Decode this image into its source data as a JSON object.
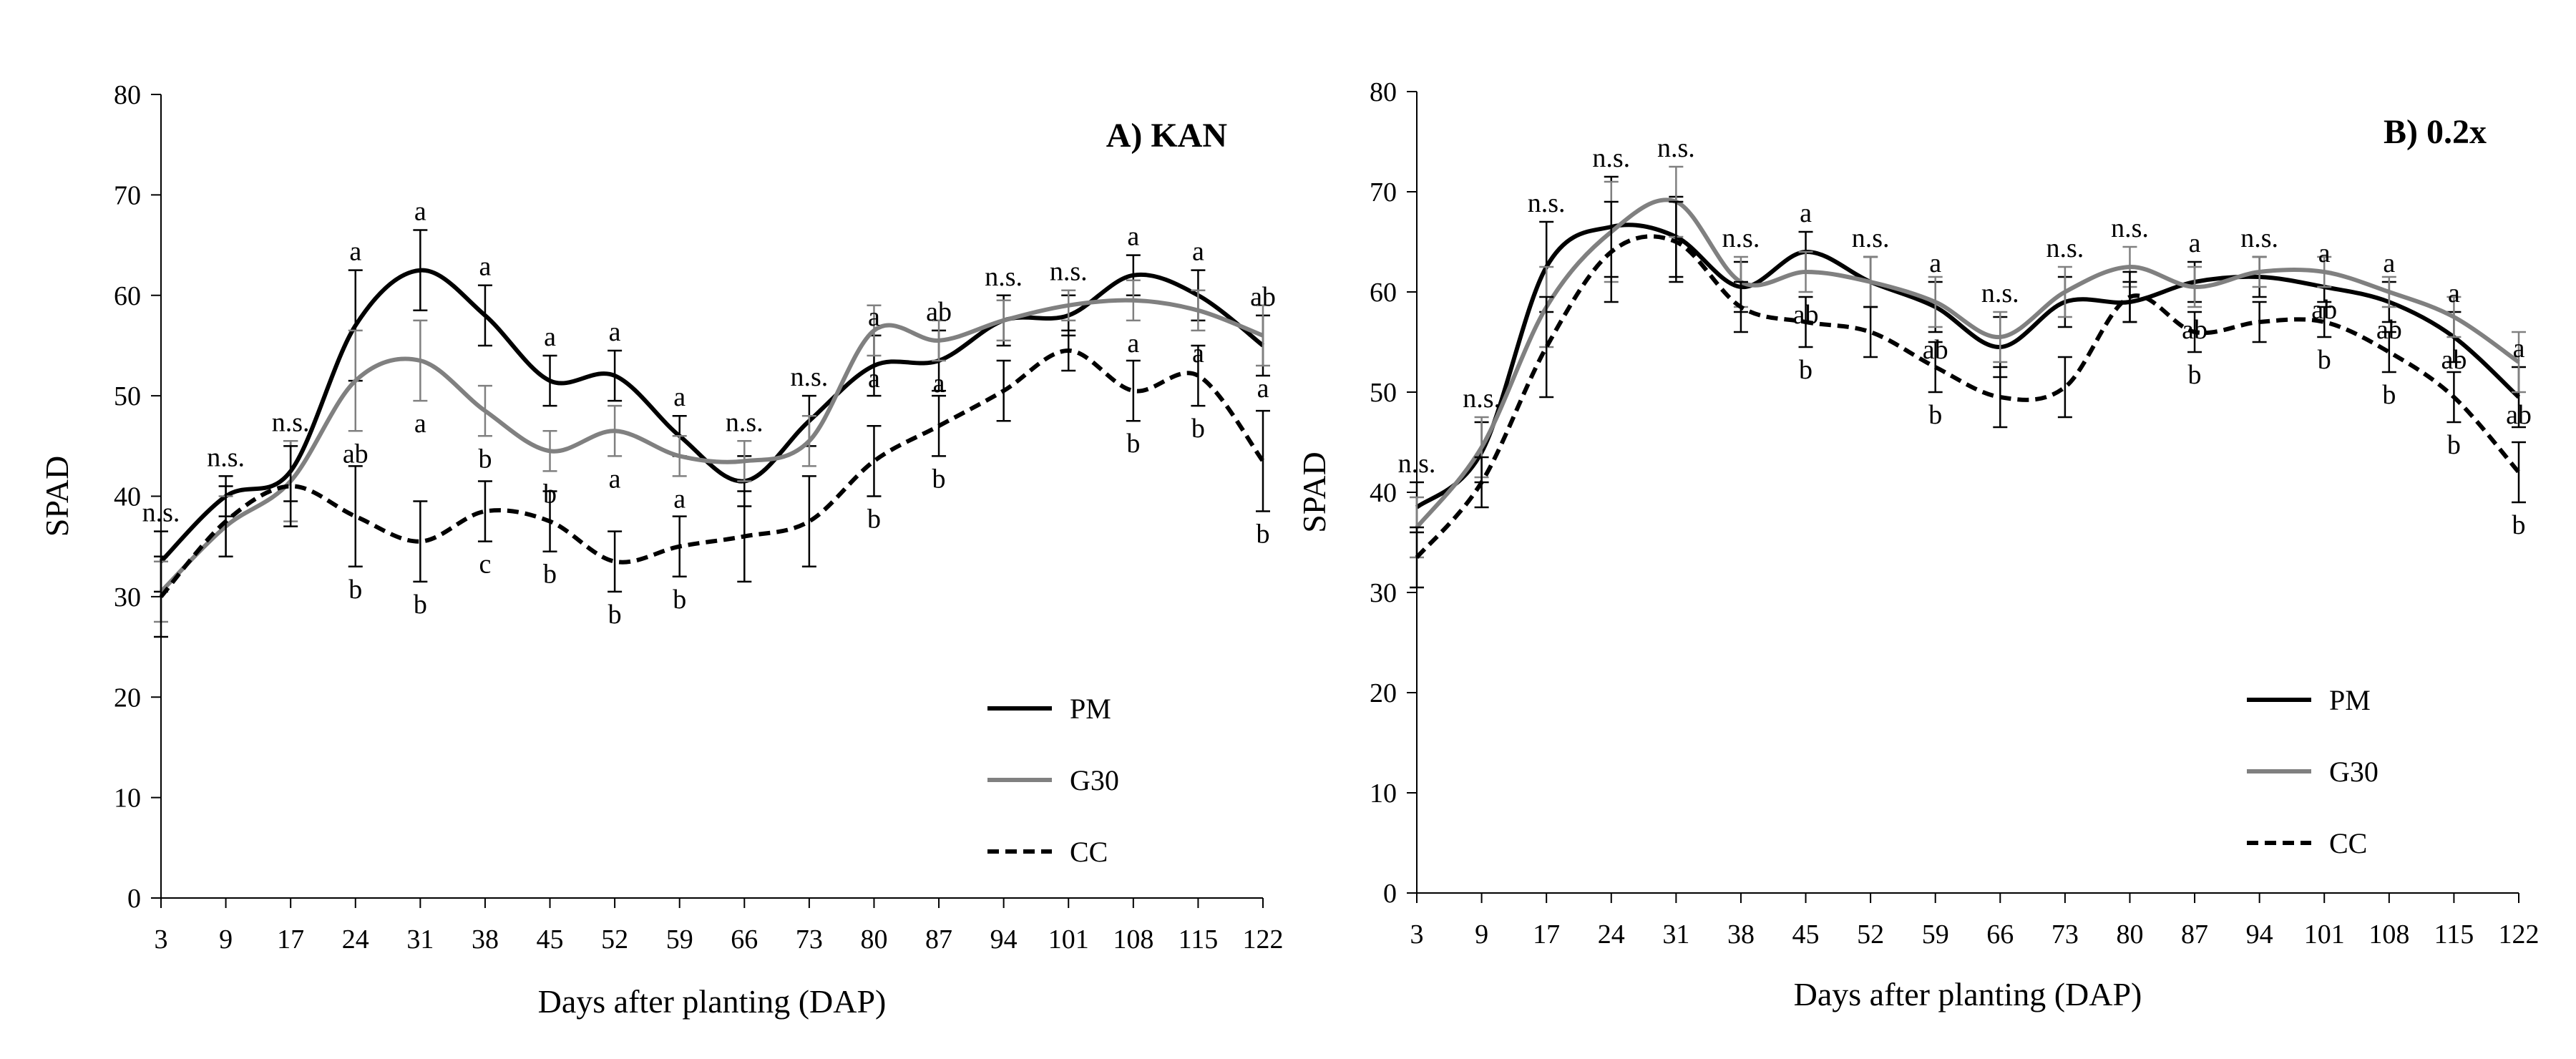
{
  "chart_data": [
    {
      "type": "line",
      "title": "A) KAN",
      "xlabel": "Days after planting (DAP)",
      "ylabel": "SPAD",
      "ylim": [
        0,
        80
      ],
      "yticks": [
        0,
        10,
        20,
        30,
        40,
        50,
        60,
        70,
        80
      ],
      "x": [
        3,
        9,
        17,
        24,
        31,
        38,
        45,
        52,
        59,
        66,
        73,
        80,
        87,
        94,
        101,
        108,
        115,
        122
      ],
      "legend_position": "bottom-right",
      "series": [
        {
          "name": "PM",
          "color": "#000000",
          "dash": "solid",
          "values": [
            33.5,
            40,
            42.5,
            57,
            62.5,
            58,
            51.5,
            52,
            46,
            41.5,
            47.5,
            53,
            53.5,
            57.5,
            58,
            62,
            60,
            55
          ],
          "err": [
            3,
            2,
            3,
            5.5,
            4,
            3,
            2.5,
            2.5,
            2,
            2.5,
            2.5,
            3,
            3,
            2.5,
            2,
            2,
            2.5,
            3
          ]
        },
        {
          "name": "G30",
          "color": "#808080",
          "dash": "solid",
          "values": [
            30.5,
            37,
            41.5,
            51.5,
            53.5,
            48.5,
            44.5,
            46.5,
            44,
            43.5,
            45.5,
            56.5,
            55.5,
            57.5,
            59,
            59.5,
            58.5,
            56
          ],
          "err": [
            3,
            3,
            4,
            5,
            4,
            2.5,
            2,
            2.5,
            2,
            2,
            2.5,
            2.5,
            2,
            2,
            1.5,
            2,
            2,
            3
          ]
        },
        {
          "name": "CC",
          "color": "#000000",
          "dash": "dashed",
          "values": [
            30,
            37.5,
            41,
            38,
            35.5,
            38.5,
            37.5,
            33.5,
            35,
            36,
            37.5,
            43.5,
            47,
            50.5,
            54.5,
            50.5,
            52,
            43.5
          ],
          "err": [
            4,
            3.5,
            4,
            5,
            4,
            3,
            3,
            3,
            3,
            4.5,
            4.5,
            3.5,
            3,
            3,
            2,
            3,
            3,
            5
          ]
        }
      ],
      "annotations": [
        {
          "x": 3,
          "lines": [
            "n.s."
          ]
        },
        {
          "x": 9,
          "lines": [
            "n.s."
          ]
        },
        {
          "x": 17,
          "lines": [
            "n.s."
          ]
        },
        {
          "x": 24,
          "lines": [
            "a",
            "ab",
            "b"
          ]
        },
        {
          "x": 31,
          "lines": [
            "a",
            "a",
            "b"
          ]
        },
        {
          "x": 38,
          "lines": [
            "a",
            "b",
            "c"
          ]
        },
        {
          "x": 45,
          "lines": [
            "a",
            "b",
            "b"
          ]
        },
        {
          "x": 52,
          "lines": [
            "a",
            "a",
            "b"
          ]
        },
        {
          "x": 59,
          "lines": [
            "a",
            "a",
            "b"
          ]
        },
        {
          "x": 66,
          "lines": [
            "n.s."
          ]
        },
        {
          "x": 73,
          "lines": [
            "n.s."
          ]
        },
        {
          "x": 80,
          "lines": [
            "a",
            "a",
            "b"
          ]
        },
        {
          "x": 87,
          "lines": [
            "ab",
            "a",
            "b"
          ]
        },
        {
          "x": 94,
          "lines": [
            "n.s."
          ]
        },
        {
          "x": 101,
          "lines": [
            "n.s."
          ]
        },
        {
          "x": 108,
          "lines": [
            "a",
            "a",
            "b"
          ]
        },
        {
          "x": 115,
          "lines": [
            "a",
            "a",
            "b"
          ]
        },
        {
          "x": 122,
          "lines": [
            "ab",
            "a",
            "b"
          ]
        }
      ]
    },
    {
      "type": "line",
      "title": "B) 0.2x",
      "xlabel": "Days after planting (DAP)",
      "ylabel": "SPAD",
      "ylim": [
        0,
        80
      ],
      "yticks": [
        0,
        10,
        20,
        30,
        40,
        50,
        60,
        70,
        80
      ],
      "x": [
        3,
        9,
        17,
        24,
        31,
        38,
        45,
        52,
        59,
        66,
        73,
        80,
        87,
        94,
        101,
        108,
        115,
        122
      ],
      "legend_position": "bottom-right",
      "series": [
        {
          "name": "PM",
          "color": "#000000",
          "dash": "solid",
          "values": [
            38.5,
            44,
            62.5,
            66.5,
            65.5,
            60.5,
            64,
            61,
            58.5,
            54.5,
            59,
            59,
            61,
            61.5,
            60.5,
            59,
            55.5,
            49.5
          ],
          "err": [
            2.5,
            3,
            4.5,
            5,
            4,
            2.5,
            2,
            2.5,
            2.5,
            3,
            2.5,
            2,
            2,
            2,
            1.5,
            2,
            2.5,
            3
          ]
        },
        {
          "name": "G30",
          "color": "#808080",
          "dash": "solid",
          "values": [
            36.5,
            44.5,
            58.5,
            66,
            69,
            61,
            62,
            61,
            59,
            55.5,
            60,
            62.5,
            60.5,
            62,
            62,
            60,
            57.5,
            53
          ],
          "err": [
            3,
            3,
            4,
            5,
            3.5,
            2.5,
            2,
            2.5,
            2.5,
            2.5,
            2.5,
            2,
            2,
            1.5,
            1.5,
            1.5,
            2,
            3
          ]
        },
        {
          "name": "CC",
          "color": "#000000",
          "dash": "dashed",
          "values": [
            33.5,
            41,
            54.5,
            64,
            65,
            58.5,
            57,
            56,
            52.5,
            49.5,
            50.5,
            59.5,
            56,
            57,
            57,
            54,
            49.5,
            42
          ],
          "err": [
            3,
            2.5,
            5,
            5,
            4,
            2.5,
            2.5,
            2.5,
            2.5,
            3,
            3,
            2.5,
            2,
            2,
            1.5,
            2,
            2.5,
            3
          ]
        }
      ],
      "annotations": [
        {
          "x": 3,
          "lines": [
            "n.s."
          ]
        },
        {
          "x": 9,
          "lines": [
            "n.s."
          ]
        },
        {
          "x": 17,
          "lines": [
            "n.s."
          ]
        },
        {
          "x": 24,
          "lines": [
            "n.s."
          ]
        },
        {
          "x": 31,
          "lines": [
            "n.s."
          ]
        },
        {
          "x": 38,
          "lines": [
            "n.s."
          ]
        },
        {
          "x": 45,
          "lines": [
            "a",
            "ab",
            "b"
          ]
        },
        {
          "x": 52,
          "lines": [
            "n.s."
          ]
        },
        {
          "x": 59,
          "lines": [
            "a",
            "ab",
            "b"
          ]
        },
        {
          "x": 66,
          "lines": [
            "n.s."
          ]
        },
        {
          "x": 73,
          "lines": [
            "n.s."
          ]
        },
        {
          "x": 80,
          "lines": [
            "n.s."
          ]
        },
        {
          "x": 87,
          "lines": [
            "a",
            "ab",
            "b"
          ]
        },
        {
          "x": 94,
          "lines": [
            "n.s."
          ]
        },
        {
          "x": 101,
          "lines": [
            "a",
            "ab",
            "b"
          ]
        },
        {
          "x": 108,
          "lines": [
            "a",
            "ab",
            "b"
          ]
        },
        {
          "x": 115,
          "lines": [
            "a",
            "ab",
            "b"
          ]
        },
        {
          "x": 122,
          "lines": [
            "a",
            "ab",
            "b"
          ]
        }
      ]
    }
  ]
}
